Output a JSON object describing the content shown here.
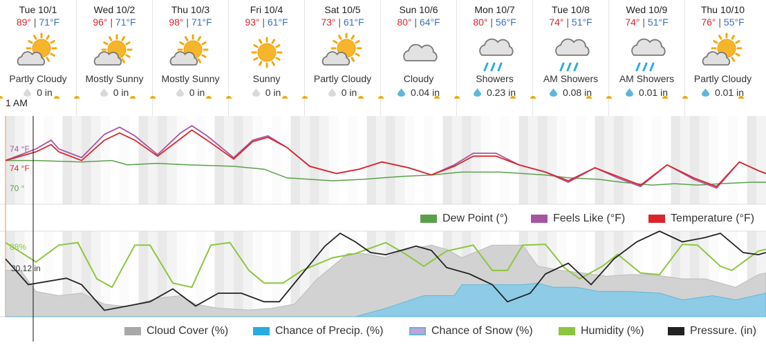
{
  "days": [
    {
      "name": "Tue 10/1",
      "hi": "89°",
      "lo": "71°F",
      "condition": "Partly Cloudy",
      "precip": "0 in",
      "icon": "partly-cloudy-icon",
      "drop": "gray"
    },
    {
      "name": "Wed 10/2",
      "hi": "96°",
      "lo": "71°F",
      "condition": "Mostly Sunny",
      "precip": "0 in",
      "icon": "mostly-sunny-icon",
      "drop": "gray"
    },
    {
      "name": "Thu 10/3",
      "hi": "98°",
      "lo": "71°F",
      "condition": "Mostly Sunny",
      "precip": "0 in",
      "icon": "mostly-sunny-icon",
      "drop": "gray"
    },
    {
      "name": "Fri 10/4",
      "hi": "93°",
      "lo": "61°F",
      "condition": "Sunny",
      "precip": "0 in",
      "icon": "sunny-icon",
      "drop": "gray"
    },
    {
      "name": "Sat 10/5",
      "hi": "73°",
      "lo": "61°F",
      "condition": "Partly Cloudy",
      "precip": "0 in",
      "icon": "partly-cloudy-icon",
      "drop": "gray"
    },
    {
      "name": "Sun 10/6",
      "hi": "80°",
      "lo": "64°F",
      "condition": "Cloudy",
      "precip": "0.04 in",
      "icon": "cloudy-icon",
      "drop": "blue"
    },
    {
      "name": "Mon 10/7",
      "hi": "80°",
      "lo": "56°F",
      "condition": "Showers",
      "precip": "0.23 in",
      "icon": "showers-icon",
      "drop": "blue"
    },
    {
      "name": "Tue 10/8",
      "hi": "74°",
      "lo": "51°F",
      "condition": "AM Showers",
      "precip": "0.08 in",
      "icon": "showers-icon",
      "drop": "blue"
    },
    {
      "name": "Wed 10/9",
      "hi": "74°",
      "lo": "51°F",
      "condition": "AM Showers",
      "precip": "0.01 in",
      "icon": "showers-icon",
      "drop": "blue"
    },
    {
      "name": "Thu 10/10",
      "hi": "76°",
      "lo": "55°F",
      "condition": "Partly Cloudy",
      "precip": "0.01 in",
      "icon": "partly-cloudy-icon",
      "drop": "blue"
    }
  ],
  "cursor": {
    "time": "1 AM",
    "temp_feels": "74 °F",
    "temp": "74 °F",
    "dew": "70 °",
    "humidity": "88%",
    "pressure": "30.12 in"
  },
  "legend_top": [
    "Dew Point (°)",
    "Feels Like (°F)",
    "Temperature (°F)"
  ],
  "legend_bottom": [
    "Cloud Cover (%)",
    "Chance of Precip. (%)",
    "Chance of Snow (%)",
    "Humidity (%)",
    "Pressure. (in)"
  ],
  "colors": {
    "temperature": "#d9262c",
    "feels_like": "#a655a0",
    "dew_point": "#5aa04a",
    "cloud": "#c8c8c8",
    "precip": "#5fb6d9",
    "snow": "#c9a0d6",
    "humidity": "#8cc63f",
    "pressure": "#222222",
    "hi": "#d9262c",
    "lo": "#3a6fb7"
  },
  "chart_data": [
    {
      "type": "line",
      "x": [
        "Tue 10/1",
        "Wed 10/2",
        "Thu 10/3",
        "Fri 10/4",
        "Sat 10/5",
        "Sun 10/6",
        "Mon 10/7",
        "Tue 10/8",
        "Wed 10/9",
        "Thu 10/10"
      ],
      "series": [
        {
          "name": "Temperature (°F)",
          "values": [
            [
              0,
              74
            ],
            [
              0.4,
              80
            ],
            [
              0.6,
              85
            ],
            [
              0.7,
              80
            ],
            [
              1.0,
              74
            ],
            [
              1.3,
              88
            ],
            [
              1.5,
              93
            ],
            [
              1.7,
              88
            ],
            [
              2.0,
              77
            ],
            [
              2.3,
              89
            ],
            [
              2.45,
              95
            ],
            [
              2.65,
              88
            ],
            [
              3.0,
              75
            ],
            [
              3.25,
              87
            ],
            [
              3.45,
              90
            ],
            [
              3.7,
              83
            ],
            [
              4.0,
              70
            ],
            [
              4.35,
              65
            ],
            [
              4.65,
              68
            ],
            [
              4.95,
              73
            ],
            [
              5.3,
              69
            ],
            [
              5.6,
              64
            ],
            [
              5.9,
              70
            ],
            [
              6.15,
              77
            ],
            [
              6.45,
              77
            ],
            [
              6.75,
              71
            ],
            [
              7.1,
              66
            ],
            [
              7.4,
              60
            ],
            [
              7.75,
              69
            ],
            [
              8.05,
              63
            ],
            [
              8.35,
              57
            ],
            [
              8.7,
              71
            ],
            [
              9.05,
              62
            ],
            [
              9.35,
              56
            ],
            [
              9.65,
              73
            ],
            [
              9.9,
              67
            ],
            [
              10,
              65
            ]
          ]
        },
        {
          "name": "Feels Like (°F)",
          "values": [
            [
              0,
              74
            ],
            [
              0.4,
              82
            ],
            [
              0.6,
              88
            ],
            [
              0.7,
              82
            ],
            [
              1.0,
              76
            ],
            [
              1.3,
              92
            ],
            [
              1.5,
              97
            ],
            [
              1.7,
              91
            ],
            [
              2.0,
              78
            ],
            [
              2.3,
              93
            ],
            [
              2.45,
              98
            ],
            [
              2.65,
              91
            ],
            [
              3.0,
              76
            ],
            [
              3.25,
              88
            ],
            [
              3.45,
              91
            ],
            [
              3.7,
              83
            ],
            [
              4.0,
              70
            ],
            [
              4.35,
              65
            ],
            [
              4.65,
              68
            ],
            [
              4.95,
              73
            ],
            [
              5.3,
              69
            ],
            [
              5.6,
              64
            ],
            [
              5.9,
              71
            ],
            [
              6.15,
              79
            ],
            [
              6.45,
              79
            ],
            [
              6.75,
              71
            ],
            [
              7.1,
              66
            ],
            [
              7.4,
              59
            ],
            [
              7.75,
              69
            ],
            [
              8.05,
              62
            ],
            [
              8.35,
              56
            ],
            [
              8.7,
              71
            ],
            [
              9.05,
              61
            ],
            [
              9.35,
              55
            ],
            [
              9.65,
              73
            ],
            [
              9.9,
              67
            ],
            [
              10,
              65
            ]
          ]
        },
        {
          "name": "Dew Point (°)",
          "values": [
            [
              0,
              74
            ],
            [
              0.4,
              74
            ],
            [
              1.0,
              73
            ],
            [
              1.4,
              74
            ],
            [
              1.6,
              71
            ],
            [
              2.0,
              72
            ],
            [
              2.4,
              71
            ],
            [
              3.0,
              70
            ],
            [
              3.4,
              68
            ],
            [
              3.7,
              62
            ],
            [
              4.0,
              61
            ],
            [
              4.3,
              60
            ],
            [
              4.7,
              61
            ],
            [
              5.2,
              63
            ],
            [
              5.6,
              64
            ],
            [
              6.0,
              66
            ],
            [
              6.5,
              66
            ],
            [
              6.8,
              65
            ],
            [
              7.1,
              64
            ],
            [
              7.4,
              62
            ],
            [
              7.8,
              61
            ],
            [
              8.1,
              59
            ],
            [
              8.5,
              57
            ],
            [
              8.8,
              58
            ],
            [
              9.1,
              57
            ],
            [
              9.4,
              58
            ],
            [
              9.8,
              59
            ],
            [
              10,
              59
            ]
          ]
        }
      ]
    },
    {
      "type": "area",
      "x": [
        "Tue 10/1",
        "Wed 10/2",
        "Thu 10/3",
        "Fri 10/4",
        "Sat 10/5",
        "Sun 10/6",
        "Mon 10/7",
        "Tue 10/8",
        "Wed 10/9",
        "Thu 10/10"
      ],
      "ylim": [
        0,
        100
      ],
      "series": [
        {
          "name": "Cloud Cover (%)",
          "values": [
            [
              0,
              55
            ],
            [
              0.2,
              55
            ],
            [
              0.4,
              30
            ],
            [
              0.7,
              25
            ],
            [
              1.0,
              28
            ],
            [
              1.3,
              15
            ],
            [
              1.6,
              12
            ],
            [
              2.0,
              22
            ],
            [
              2.3,
              25
            ],
            [
              2.5,
              15
            ],
            [
              2.8,
              10
            ],
            [
              3.2,
              8
            ],
            [
              3.5,
              10
            ],
            [
              3.8,
              15
            ],
            [
              4.1,
              45
            ],
            [
              4.5,
              75
            ],
            [
              4.7,
              75
            ],
            [
              5.0,
              70
            ],
            [
              5.2,
              78
            ],
            [
              5.6,
              85
            ],
            [
              5.8,
              80
            ],
            [
              6.0,
              70
            ],
            [
              6.4,
              85
            ],
            [
              6.8,
              85
            ],
            [
              7.0,
              60
            ],
            [
              7.3,
              55
            ],
            [
              7.6,
              52
            ],
            [
              7.9,
              48
            ],
            [
              8.2,
              50
            ],
            [
              8.5,
              50
            ],
            [
              8.9,
              45
            ],
            [
              9.2,
              45
            ],
            [
              9.6,
              35
            ],
            [
              9.9,
              50
            ],
            [
              10,
              52
            ]
          ]
        },
        {
          "name": "Chance of Precip. (%)",
          "values": [
            [
              0,
              0
            ],
            [
              4.6,
              0
            ],
            [
              5.0,
              10
            ],
            [
              5.5,
              25
            ],
            [
              5.9,
              25
            ],
            [
              6.0,
              38
            ],
            [
              6.4,
              38
            ],
            [
              6.8,
              38
            ],
            [
              7.0,
              40
            ],
            [
              7.2,
              35
            ],
            [
              7.5,
              35
            ],
            [
              7.8,
              30
            ],
            [
              8.2,
              30
            ],
            [
              8.6,
              28
            ],
            [
              8.9,
              20
            ],
            [
              9.3,
              25
            ],
            [
              9.6,
              20
            ],
            [
              10,
              28
            ]
          ]
        },
        {
          "name": "Humidity (%)",
          "values": [
            [
              0,
              88
            ],
            [
              0.4,
              65
            ],
            [
              0.7,
              85
            ],
            [
              0.95,
              88
            ],
            [
              1.2,
              45
            ],
            [
              1.4,
              35
            ],
            [
              1.7,
              85
            ],
            [
              1.9,
              85
            ],
            [
              2.2,
              40
            ],
            [
              2.45,
              35
            ],
            [
              2.7,
              85
            ],
            [
              2.95,
              88
            ],
            [
              3.2,
              55
            ],
            [
              3.4,
              40
            ],
            [
              3.65,
              40
            ],
            [
              3.9,
              55
            ],
            [
              4.3,
              70
            ],
            [
              4.6,
              75
            ],
            [
              5.0,
              88
            ],
            [
              5.25,
              75
            ],
            [
              5.5,
              60
            ],
            [
              5.8,
              78
            ],
            [
              6.0,
              82
            ],
            [
              6.15,
              85
            ],
            [
              6.4,
              55
            ],
            [
              6.6,
              55
            ],
            [
              6.8,
              85
            ],
            [
              7.1,
              86
            ],
            [
              7.35,
              58
            ],
            [
              7.55,
              45
            ],
            [
              7.85,
              60
            ],
            [
              8.05,
              74
            ],
            [
              8.35,
              52
            ],
            [
              8.6,
              50
            ],
            [
              8.9,
              86
            ],
            [
              9.1,
              85
            ],
            [
              9.4,
              60
            ],
            [
              9.55,
              55
            ],
            [
              9.9,
              78
            ],
            [
              10,
              80
            ]
          ]
        },
        {
          "name": "Pressure. (in)",
          "values": [
            [
              0,
              30.12
            ],
            [
              0.3,
              30.0
            ],
            [
              0.8,
              30.03
            ],
            [
              1.0,
              30.0
            ],
            [
              1.3,
              29.88
            ],
            [
              1.6,
              29.9
            ],
            [
              1.9,
              29.92
            ],
            [
              2.2,
              29.98
            ],
            [
              2.5,
              29.9
            ],
            [
              2.8,
              29.96
            ],
            [
              3.1,
              29.96
            ],
            [
              3.4,
              29.92
            ],
            [
              3.6,
              29.92
            ],
            [
              3.9,
              30.05
            ],
            [
              4.2,
              30.18
            ],
            [
              4.4,
              30.24
            ],
            [
              4.6,
              30.2
            ],
            [
              4.8,
              30.15
            ],
            [
              5.0,
              30.14
            ],
            [
              5.4,
              30.18
            ],
            [
              5.6,
              30.16
            ],
            [
              5.8,
              30.08
            ],
            [
              6.1,
              30.05
            ],
            [
              6.4,
              30.0
            ],
            [
              6.6,
              29.92
            ],
            [
              6.9,
              29.96
            ],
            [
              7.1,
              30.05
            ],
            [
              7.4,
              30.1
            ],
            [
              7.7,
              30.0
            ],
            [
              8.0,
              30.12
            ],
            [
              8.3,
              30.2
            ],
            [
              8.6,
              30.25
            ],
            [
              8.9,
              30.2
            ],
            [
              9.2,
              30.22
            ],
            [
              9.4,
              30.24
            ],
            [
              9.7,
              30.15
            ],
            [
              9.9,
              30.14
            ],
            [
              10,
              30.15
            ]
          ]
        }
      ]
    }
  ]
}
